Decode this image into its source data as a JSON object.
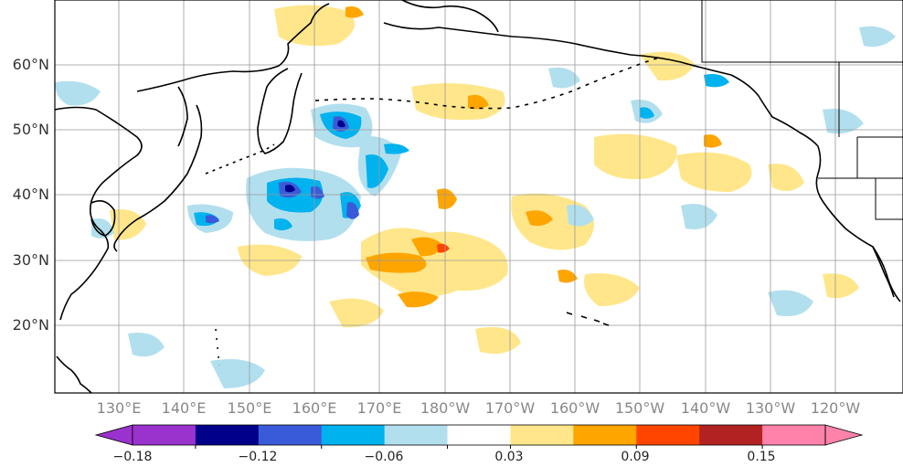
{
  "map": {
    "lat_labels": [
      "60°N",
      "50°N",
      "40°N",
      "30°N",
      "20°N"
    ],
    "lon_labels": [
      "130°E",
      "140°E",
      "150°E",
      "160°E",
      "170°E",
      "180°W",
      "170°W",
      "160°W",
      "150°W",
      "140°W",
      "130°W",
      "120°W"
    ],
    "gridlines": true,
    "coastlines": true
  },
  "colorbar": {
    "levels": [
      -0.18,
      -0.15,
      -0.12,
      -0.09,
      -0.06,
      -0.03,
      0.03,
      0.06,
      0.09,
      0.12,
      0.15
    ],
    "colors": [
      "#9a32cd",
      "#00008b",
      "#3a5bd9",
      "#00b2ee",
      "#b2dfee",
      "#ffffff",
      "#ffe68a",
      "#ffa500",
      "#ff4500",
      "#b22222",
      "#ff82ab"
    ],
    "tick_labels": [
      "−0.18",
      "−0.12",
      "−0.06",
      "0.03",
      "0.09",
      "0.15"
    ],
    "extend": "both"
  }
}
